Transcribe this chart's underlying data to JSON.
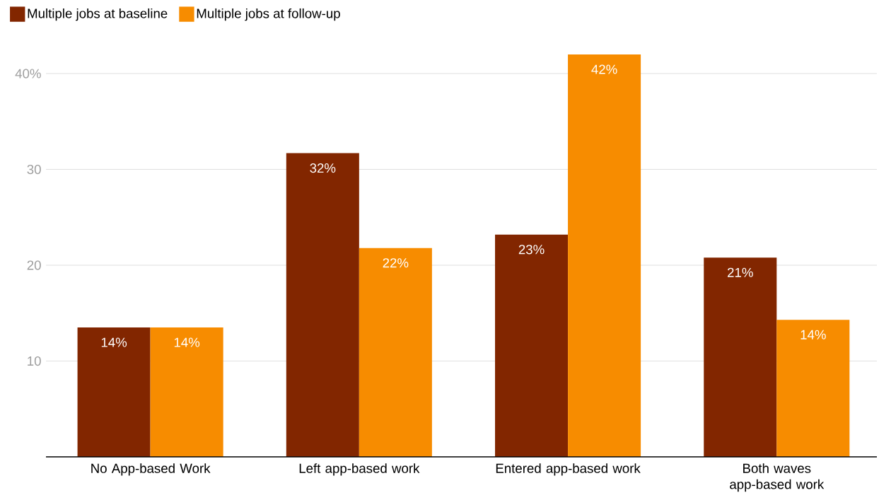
{
  "chart_data": {
    "type": "bar",
    "categories": [
      "No App-based Work",
      "Left app-based work",
      "Entered app-based work",
      "Both waves app-based work"
    ],
    "series": [
      {
        "name": "Multiple jobs at baseline",
        "color": "#822600",
        "values": [
          13.5,
          31.7,
          23.2,
          20.8
        ],
        "value_labels": [
          "14%",
          "32%",
          "23%",
          "21%"
        ]
      },
      {
        "name": "Multiple jobs at follow-up",
        "color": "#f78c00",
        "values": [
          13.5,
          21.8,
          42.0,
          14.3
        ],
        "value_labels": [
          "14%",
          "22%",
          "42%",
          "14%"
        ]
      }
    ],
    "ylim": [
      0,
      42
    ],
    "yticks": [
      10,
      20,
      30,
      {
        "value": 40,
        "label": "40%"
      }
    ],
    "grid": "y",
    "legend": "top left"
  }
}
